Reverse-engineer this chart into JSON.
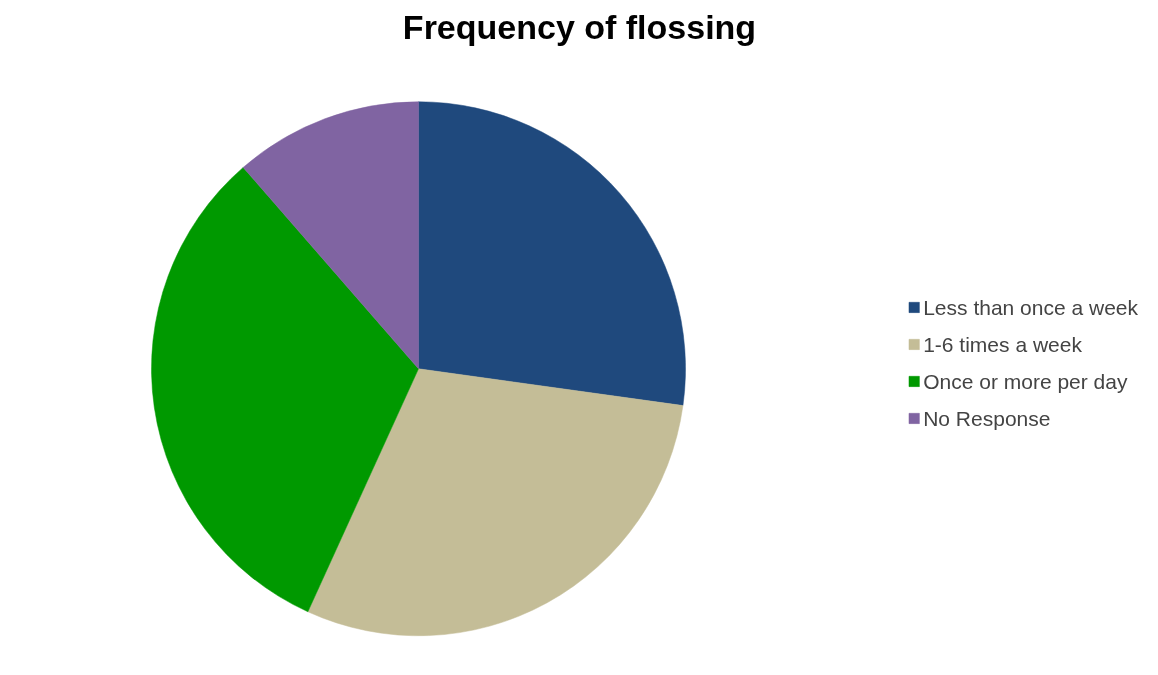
{
  "chart_data": {
    "type": "pie",
    "title": "Frequency of flossing",
    "categories": [
      "Less than once a week",
      "1-6 times a week",
      "Once or more per day",
      "No Response"
    ],
    "values": [
      27.2,
      29.6,
      31.8,
      11.4
    ],
    "colors": [
      "#1f497d",
      "#c4bd97",
      "#009900",
      "#8064a2"
    ],
    "legend": "right"
  }
}
